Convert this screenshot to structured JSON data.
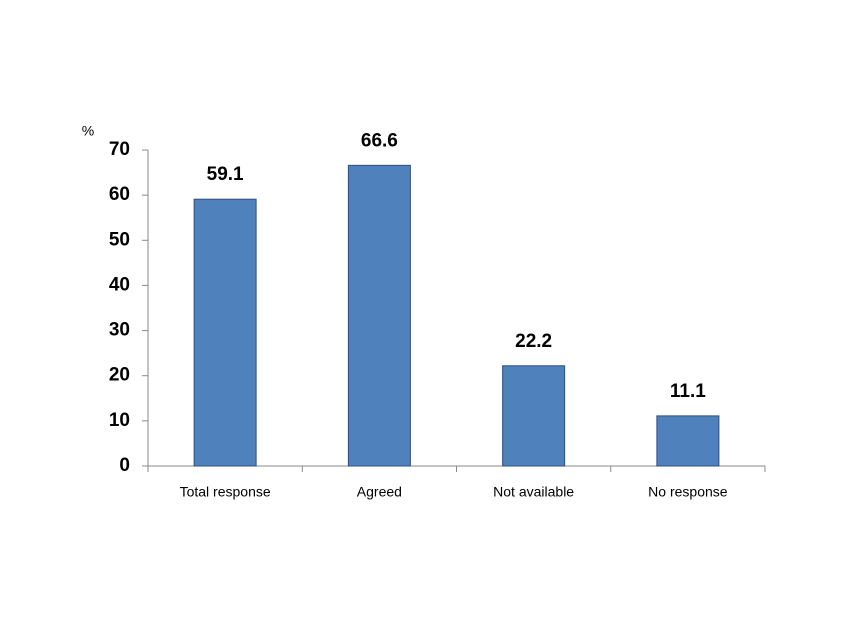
{
  "chart_data": {
    "type": "bar",
    "y_label": "%",
    "categories": [
      "Total response",
      "Agreed",
      "Not available",
      "No response"
    ],
    "values": [
      59.1,
      66.6,
      22.2,
      11.1
    ],
    "color": "#4f81bd",
    "ylim": [
      0,
      70
    ],
    "yticks": [
      0,
      10,
      20,
      30,
      40,
      50,
      60,
      70
    ],
    "grid": false
  }
}
